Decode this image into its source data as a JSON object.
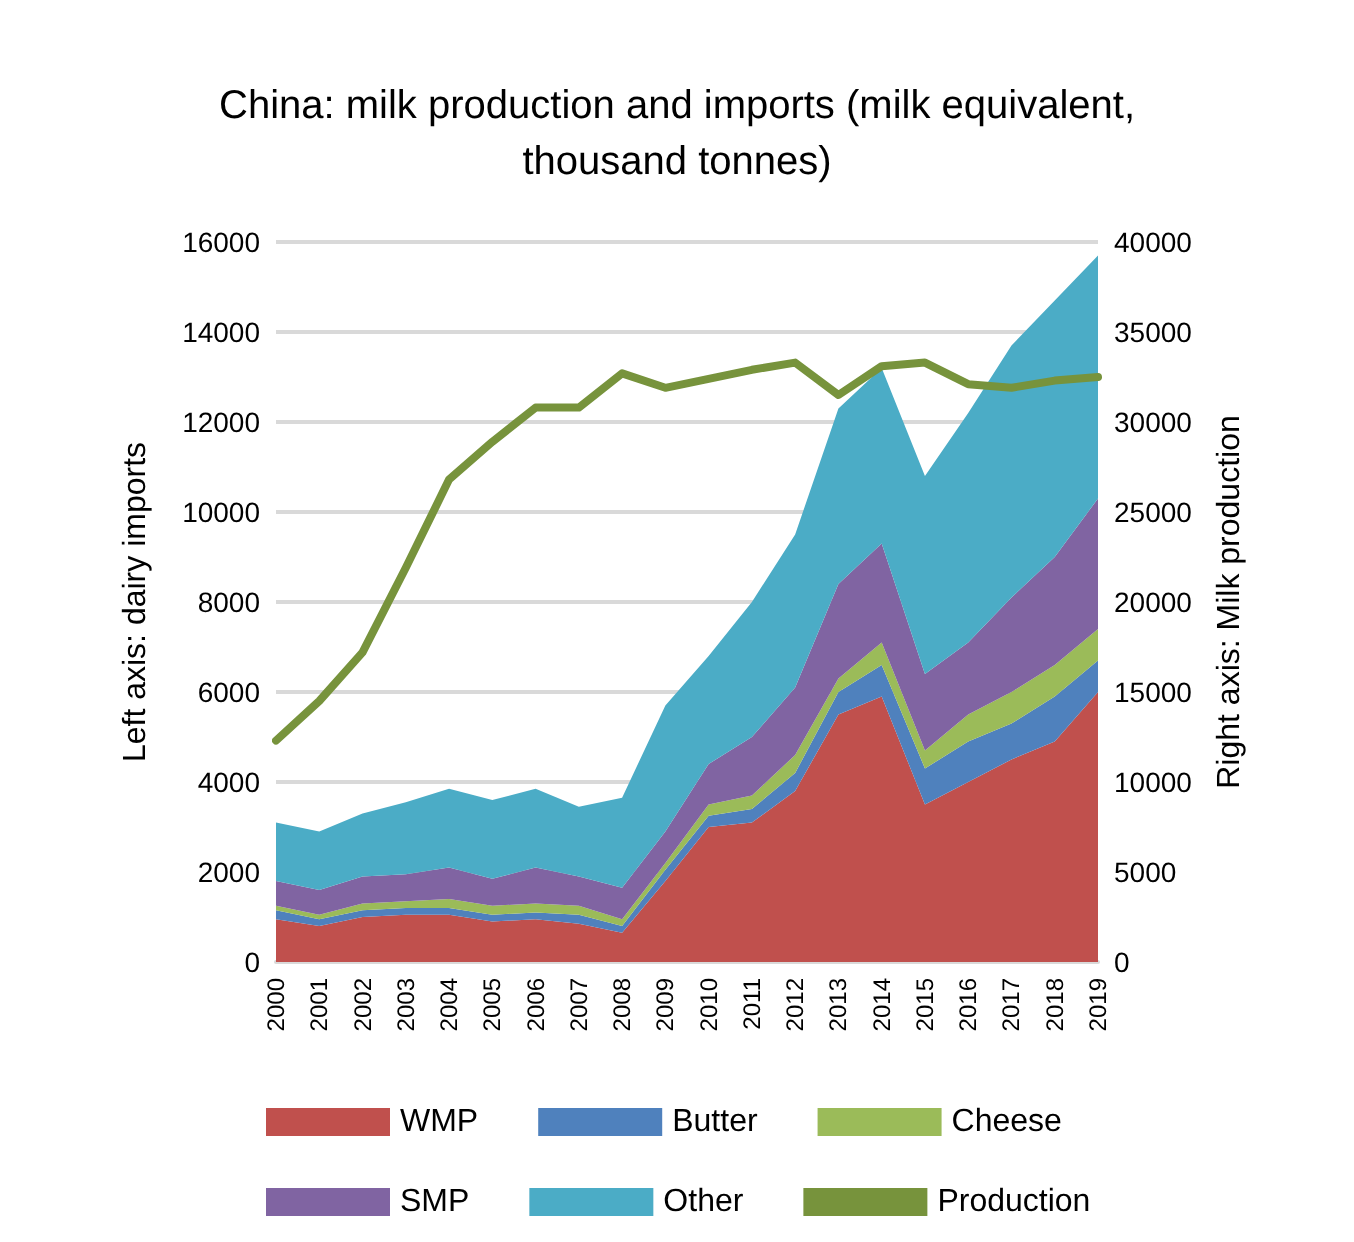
{
  "chart_data": {
    "type": "area",
    "title": "China: milk production and imports (milk equivalent,\nthousand tonnes)",
    "ylabel": "Left axis: dairy imports",
    "y2label": "Right axis: Milk production",
    "categories": [
      "2000",
      "2001",
      "2002",
      "2003",
      "2004",
      "2005",
      "2006",
      "2007",
      "2008",
      "2009",
      "2010",
      "2011",
      "2012",
      "2013",
      "2014",
      "2015",
      "2016",
      "2017",
      "2018",
      "2019"
    ],
    "stacked": true,
    "series": [
      {
        "name": "WMP",
        "color": "#c0504d",
        "values": [
          950,
          800,
          1000,
          1050,
          1050,
          900,
          950,
          850,
          650,
          1800,
          3000,
          3100,
          3800,
          5500,
          5900,
          3500,
          4000,
          4500,
          4900,
          6000
        ]
      },
      {
        "name": "Butter",
        "color": "#4f81bd",
        "values": [
          200,
          150,
          150,
          150,
          150,
          150,
          150,
          200,
          150,
          250,
          250,
          300,
          400,
          500,
          700,
          800,
          900,
          800,
          1000,
          700
        ]
      },
      {
        "name": "Cheese",
        "color": "#9bbb59",
        "values": [
          100,
          100,
          150,
          150,
          200,
          200,
          200,
          200,
          150,
          150,
          250,
          300,
          400,
          300,
          500,
          400,
          600,
          700,
          700,
          700
        ]
      },
      {
        "name": "SMP",
        "color": "#8064a2",
        "values": [
          550,
          550,
          600,
          600,
          700,
          600,
          800,
          650,
          700,
          700,
          900,
          1300,
          1500,
          2100,
          2200,
          1700,
          1600,
          2100,
          2400,
          2900
        ]
      },
      {
        "name": "Other",
        "color": "#4bacc6",
        "values": [
          1300,
          1300,
          1400,
          1600,
          1750,
          1750,
          1750,
          1550,
          2000,
          2800,
          2400,
          3000,
          3400,
          3900,
          3900,
          4400,
          5100,
          5600,
          5700,
          5400
        ]
      },
      {
        "name": "Production",
        "type": "line",
        "axis": "y2",
        "color": "#77933c",
        "values": [
          12300,
          14500,
          17200,
          21900,
          26800,
          28900,
          30800,
          30800,
          32700,
          31900,
          32400,
          32900,
          33300,
          31500,
          33100,
          33300,
          32100,
          31900,
          32300,
          32500
        ]
      }
    ],
    "ylim": [
      0,
      16000
    ],
    "yticks": [
      0,
      2000,
      4000,
      6000,
      8000,
      10000,
      12000,
      14000,
      16000
    ],
    "y2lim": [
      0,
      40000
    ],
    "y2ticks": [
      0,
      5000,
      10000,
      15000,
      20000,
      25000,
      30000,
      35000,
      40000
    ],
    "grid": "y",
    "legend": "bottom",
    "marker": "none",
    "line_style": "solid"
  }
}
